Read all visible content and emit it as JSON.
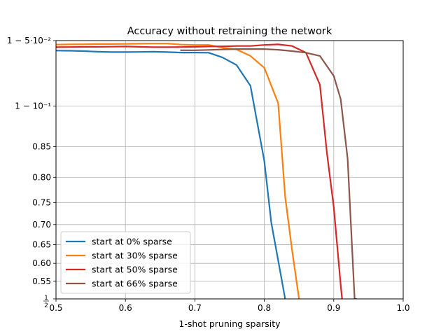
{
  "chart_data": {
    "type": "line",
    "title": "Accuracy without retraining the network",
    "xlabel": "1-shot pruning sparsity",
    "ylabel": "",
    "xlim": [
      0.5,
      1.0
    ],
    "ylim": [
      0.5,
      0.95
    ],
    "y_scale": "logit",
    "x_ticks": [
      0.5,
      0.6,
      0.7,
      0.8,
      0.9,
      1.0
    ],
    "x_tick_labels": [
      "0.5",
      "0.6",
      "0.7",
      "0.8",
      "0.9",
      "1.0"
    ],
    "y_ticks": [
      0.5,
      0.55,
      0.6,
      0.65,
      0.7,
      0.75,
      0.8,
      0.85,
      0.9,
      0.95
    ],
    "y_tick_labels": [
      "1/2",
      "0.55",
      "0.60",
      "0.65",
      "0.70",
      "0.75",
      "0.80",
      "0.85",
      "1 − 10⁻¹",
      "1 − 5·10⁻²"
    ],
    "grid": true,
    "legend_position": "lower-left",
    "series": [
      {
        "name": "start at 0% sparse",
        "color": "#1f77b4",
        "x": [
          0.5,
          0.52,
          0.54,
          0.56,
          0.58,
          0.6,
          0.62,
          0.64,
          0.66,
          0.68,
          0.7,
          0.72,
          0.74,
          0.76,
          0.78,
          0.8,
          0.81,
          0.82,
          0.83
        ],
        "y": [
          0.9443,
          0.9442,
          0.944,
          0.9436,
          0.9434,
          0.9434,
          0.9435,
          0.9436,
          0.9434,
          0.9431,
          0.9431,
          0.943,
          0.94,
          0.935,
          0.919,
          0.828,
          0.705,
          0.608,
          0.5
        ]
      },
      {
        "name": "start at 30% sparse",
        "color": "#ff7f0e",
        "x": [
          0.5,
          0.52,
          0.54,
          0.56,
          0.58,
          0.6,
          0.62,
          0.64,
          0.66,
          0.68,
          0.7,
          0.72,
          0.74,
          0.76,
          0.78,
          0.8,
          0.82,
          0.83,
          0.84,
          0.85
        ],
        "y": [
          0.9478,
          0.9479,
          0.948,
          0.9481,
          0.9481,
          0.9482,
          0.9483,
          0.9484,
          0.9484,
          0.9478,
          0.9476,
          0.9476,
          0.946,
          0.945,
          0.941,
          0.933,
          0.903,
          0.762,
          0.635,
          0.5
        ]
      },
      {
        "name": "start at 50% sparse",
        "color": "#d62728",
        "x": [
          0.5,
          0.52,
          0.54,
          0.56,
          0.58,
          0.6,
          0.62,
          0.64,
          0.66,
          0.68,
          0.7,
          0.72,
          0.74,
          0.76,
          0.78,
          0.8,
          0.82,
          0.84,
          0.86,
          0.88,
          0.89,
          0.9,
          0.91,
          0.912
        ],
        "y": [
          0.9463,
          0.9464,
          0.9465,
          0.9465,
          0.9466,
          0.9467,
          0.9465,
          0.9463,
          0.9463,
          0.9464,
          0.9465,
          0.9467,
          0.9468,
          0.947,
          0.947,
          0.9476,
          0.9479,
          0.947,
          0.943,
          0.92,
          0.842,
          0.74,
          0.54,
          0.5
        ]
      },
      {
        "name": "start at 66% sparse",
        "color": "#8c564b",
        "x": [
          0.68,
          0.7,
          0.72,
          0.74,
          0.76,
          0.78,
          0.8,
          0.82,
          0.84,
          0.86,
          0.88,
          0.9,
          0.91,
          0.92,
          0.93,
          0.932
        ],
        "y": [
          0.9445,
          0.9445,
          0.9447,
          0.945,
          0.9452,
          0.9452,
          0.9452,
          0.9448,
          0.944,
          0.943,
          0.941,
          0.927,
          0.907,
          0.832,
          0.5,
          0.5
        ]
      }
    ]
  }
}
